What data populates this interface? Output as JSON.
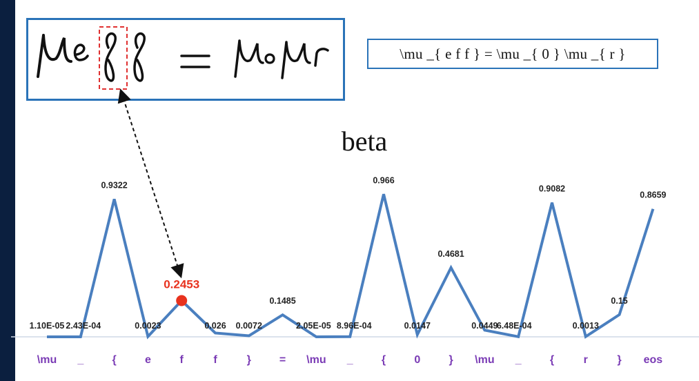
{
  "latex_text": "\\mu _{ e f f } = \\mu _{ 0 } \\mu _{ r }",
  "chart_data": {
    "type": "line",
    "title": "beta",
    "categories": [
      "\\mu",
      "_",
      "{",
      "e",
      "f",
      "f",
      "}",
      "=",
      "\\mu",
      "_",
      "{",
      "0",
      "}",
      "\\mu",
      "_",
      "{",
      "r",
      "}",
      "eos"
    ],
    "values": [
      1.1e-05,
      0.000243,
      0.9322,
      0.0023,
      0.2453,
      0.026,
      0.0072,
      0.1485,
      2.05e-05,
      0.000896,
      0.966,
      0.0147,
      0.4681,
      0.0449,
      0.000648,
      0.9082,
      0.0013,
      0.15,
      0.8659
    ],
    "value_labels": [
      "1.10E-05",
      "2.43E-04",
      "0.9322",
      "0.0023",
      "0.2453",
      "0.026",
      "0.0072",
      "0.1485",
      "2.05E-05",
      "8.96E-04",
      "0.966",
      "0.0147",
      "0.4681",
      "0.0449",
      "6.48E-04",
      "0.9082",
      "0.0013",
      "0.15",
      "0.8659"
    ],
    "highlight_index": 4,
    "ylim": [
      0,
      1
    ],
    "xlabel": "",
    "ylabel": "",
    "grid": false,
    "colors": {
      "line": "#4a7fbf",
      "highlight": "#e8321e",
      "labels": "#222222",
      "categories": "#7a3bb5",
      "arrow": "#111111",
      "box": "#2a73b8",
      "dashed_box": "#e03030"
    }
  }
}
